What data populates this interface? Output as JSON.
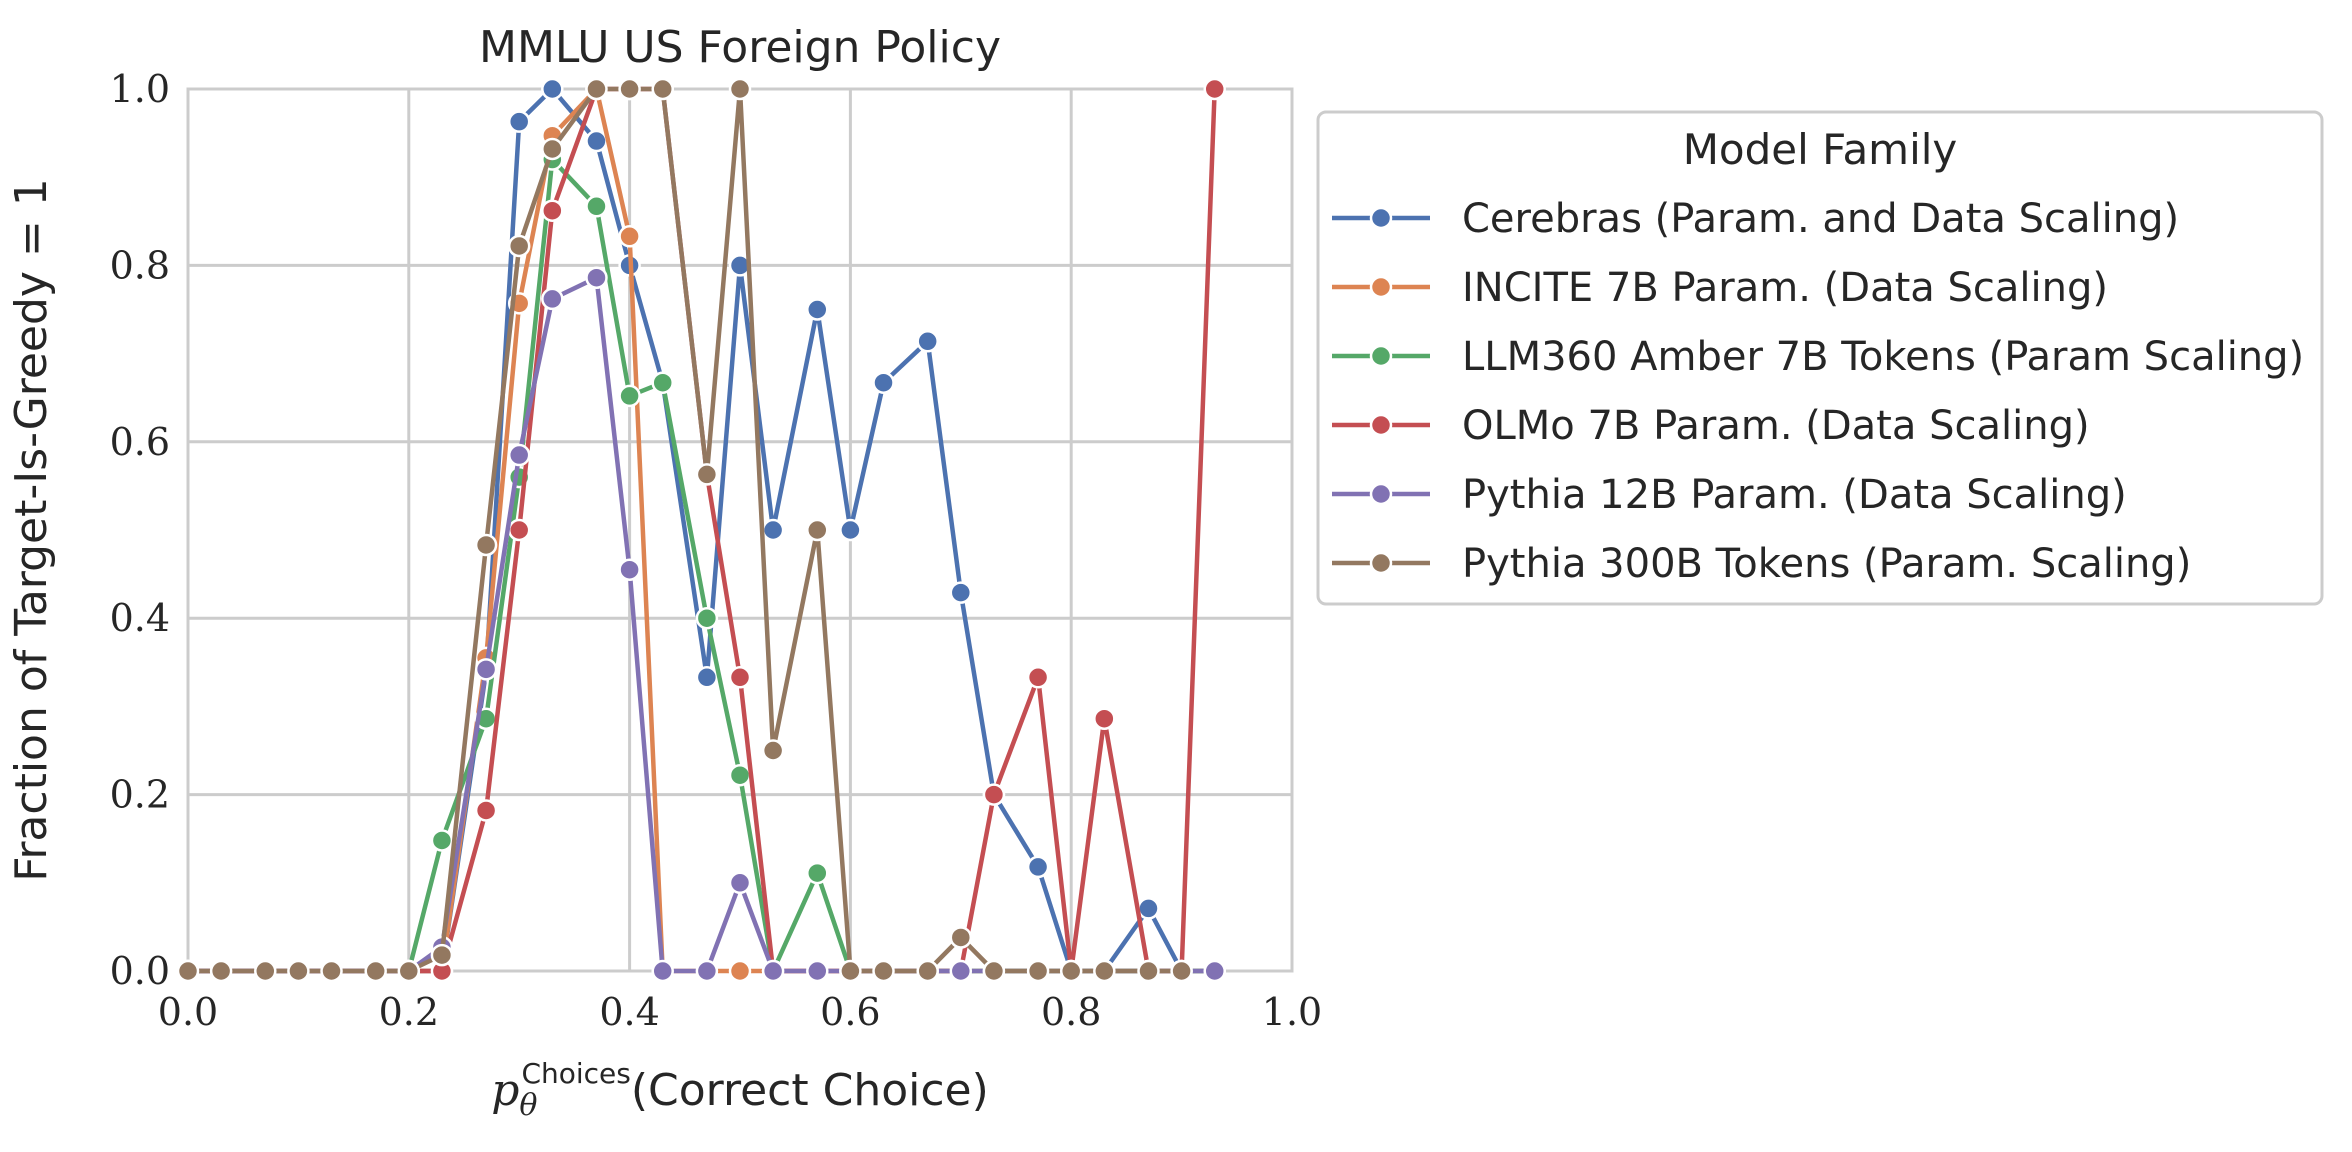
{
  "chart_data": {
    "type": "line",
    "title": "MMLU US Foreign Policy",
    "xlabel": {
      "prefix": "p",
      "subscript": "θ",
      "superscript": "Choices",
      "suffix": "(Correct Choice)"
    },
    "ylabel": "Fraction of Target-Is-Greedy = 1",
    "xlim": [
      0.0,
      1.0
    ],
    "ylim": [
      0.0,
      1.0
    ],
    "xticks": [
      "0.0",
      "0.2",
      "0.4",
      "0.6",
      "0.8",
      "1.0"
    ],
    "yticks": [
      "0.0",
      "0.2",
      "0.4",
      "0.6",
      "0.8",
      "1.0"
    ],
    "grid": true,
    "legend": {
      "title": "Model Family",
      "placement": "outside-right-top"
    },
    "series": [
      {
        "name": "Cerebras (Param. and Data Scaling)",
        "color": "#4c72b0",
        "x": [
          0.0,
          0.03,
          0.07,
          0.1,
          0.13,
          0.17,
          0.2,
          0.23,
          0.27,
          0.3,
          0.33,
          0.37,
          0.4,
          0.43,
          0.47,
          0.5,
          0.53,
          0.57,
          0.6,
          0.63,
          0.67,
          0.7,
          0.73,
          0.77,
          0.8,
          0.83,
          0.87,
          0.9,
          0.93
        ],
        "y": [
          0.0,
          0.0,
          0.0,
          0.0,
          0.0,
          0.0,
          0.0,
          0.0,
          0.34,
          0.963,
          1.0,
          0.941,
          0.8,
          0.667,
          0.333,
          0.8,
          0.5,
          0.75,
          0.5,
          0.667,
          0.714,
          0.429,
          0.2,
          0.118,
          0.0,
          0.0,
          0.071,
          0.0,
          0.0
        ]
      },
      {
        "name": "INCITE 7B Param. (Data Scaling)",
        "color": "#dd8452",
        "x": [
          0.0,
          0.03,
          0.07,
          0.1,
          0.13,
          0.17,
          0.2,
          0.23,
          0.27,
          0.3,
          0.33,
          0.37,
          0.4,
          0.43,
          0.47,
          0.5,
          0.53,
          0.57,
          0.6,
          0.63,
          0.67,
          0.7,
          0.73,
          0.77,
          0.8,
          0.83,
          0.87,
          0.9,
          0.93
        ],
        "y": [
          0.0,
          0.0,
          0.0,
          0.0,
          0.0,
          0.0,
          0.0,
          0.0,
          0.355,
          0.757,
          0.947,
          1.0,
          0.833,
          0.0,
          0.0,
          0.0,
          0.0,
          0.0,
          0.0,
          0.0,
          0.0,
          0.0,
          0.0,
          0.0,
          0.0,
          0.0,
          0.0,
          0.0,
          0.0
        ]
      },
      {
        "name": "LLM360 Amber 7B Tokens (Param Scaling)",
        "color": "#55a868",
        "x": [
          0.0,
          0.03,
          0.07,
          0.1,
          0.13,
          0.17,
          0.2,
          0.23,
          0.27,
          0.3,
          0.33,
          0.37,
          0.4,
          0.43,
          0.47,
          0.5,
          0.53,
          0.57,
          0.6,
          0.63,
          0.67,
          0.7,
          0.73,
          0.77,
          0.8,
          0.83,
          0.87,
          0.9,
          0.93
        ],
        "y": [
          0.0,
          0.0,
          0.0,
          0.0,
          0.0,
          0.0,
          0.0,
          0.148,
          0.286,
          0.56,
          0.92,
          0.867,
          0.652,
          0.667,
          0.4,
          0.222,
          0.0,
          0.111,
          0.0,
          0.0,
          0.0,
          0.0,
          0.0,
          0.0,
          0.0,
          0.0,
          0.0,
          0.0,
          0.0
        ]
      },
      {
        "name": "OLMo 7B Param. (Data Scaling)",
        "color": "#c44e52",
        "x": [
          0.0,
          0.03,
          0.07,
          0.1,
          0.13,
          0.17,
          0.2,
          0.23,
          0.27,
          0.3,
          0.33,
          0.37,
          0.4,
          0.43,
          0.47,
          0.5,
          0.53,
          0.57,
          0.6,
          0.63,
          0.67,
          0.7,
          0.73,
          0.77,
          0.8,
          0.83,
          0.87,
          0.9,
          0.93
        ],
        "y": [
          0.0,
          0.0,
          0.0,
          0.0,
          0.0,
          0.0,
          0.0,
          0.0,
          0.182,
          0.5,
          0.862,
          1.0,
          1.0,
          1.0,
          0.563,
          0.333,
          0.0,
          0.0,
          0.0,
          0.0,
          0.0,
          0.0,
          0.2,
          0.333,
          0.0,
          0.286,
          0.0,
          0.0,
          1.0
        ]
      },
      {
        "name": "Pythia 12B Param. (Data Scaling)",
        "color": "#8172b3",
        "x": [
          0.0,
          0.03,
          0.07,
          0.1,
          0.13,
          0.17,
          0.2,
          0.23,
          0.27,
          0.3,
          0.33,
          0.37,
          0.4,
          0.43,
          0.47,
          0.5,
          0.53,
          0.57,
          0.6,
          0.63,
          0.67,
          0.7,
          0.73,
          0.77,
          0.8,
          0.83,
          0.87,
          0.9,
          0.93
        ],
        "y": [
          0.0,
          0.0,
          0.0,
          0.0,
          0.0,
          0.0,
          0.0,
          0.027,
          0.342,
          0.585,
          0.762,
          0.786,
          0.455,
          0.0,
          0.0,
          0.1,
          0.0,
          0.0,
          0.0,
          0.0,
          0.0,
          0.0,
          0.0,
          0.0,
          0.0,
          0.0,
          0.0,
          0.0,
          0.0
        ]
      },
      {
        "name": "Pythia 300B Tokens (Param. Scaling)",
        "color": "#937860",
        "x": [
          0.0,
          0.03,
          0.07,
          0.1,
          0.13,
          0.17,
          0.2,
          0.23,
          0.27,
          0.3,
          0.33,
          0.37,
          0.4,
          0.43,
          0.47,
          0.5,
          0.53,
          0.57,
          0.6,
          0.63,
          0.67,
          0.7,
          0.73,
          0.77,
          0.8,
          0.83,
          0.87,
          0.9
        ],
        "y": [
          0.0,
          0.0,
          0.0,
          0.0,
          0.0,
          0.0,
          0.0,
          0.018,
          0.483,
          0.822,
          0.932,
          1.0,
          1.0,
          1.0,
          0.563,
          1.0,
          0.25,
          0.5,
          0.0,
          0.0,
          0.0,
          0.038,
          0.0,
          0.0,
          0.0,
          0.0,
          0.0,
          0.0
        ]
      }
    ]
  }
}
